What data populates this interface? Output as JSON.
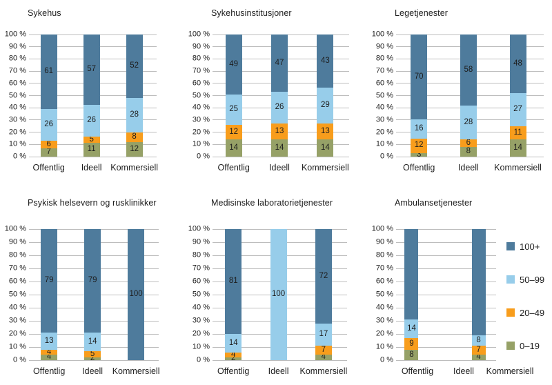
{
  "page": {
    "background": "#ffffff",
    "text_color": "#1d1d1d",
    "gridline_color": "#bdbdbd"
  },
  "legend": {
    "position": "right",
    "entries": [
      {
        "label": "100+",
        "color": "#4e7b9c"
      },
      {
        "label": "50–99",
        "color": "#97cdea"
      },
      {
        "label": "20–49",
        "color": "#f89d1c"
      },
      {
        "label": "0–19",
        "color": "#96a167"
      }
    ]
  },
  "chart_data": [
    {
      "type": "bar",
      "stacked": true,
      "title": "Sykehus",
      "categories": [
        "Offentlig",
        "Ideell",
        "Kommersiell"
      ],
      "series": [
        {
          "name": "0–19",
          "color": "#96a167",
          "values": [
            7,
            11,
            12
          ]
        },
        {
          "name": "20–49",
          "color": "#f89d1c",
          "values": [
            6,
            5,
            8
          ]
        },
        {
          "name": "50–99",
          "color": "#97cdea",
          "values": [
            26,
            26,
            28
          ]
        },
        {
          "name": "100+",
          "color": "#4e7b9c",
          "values": [
            61,
            57,
            52
          ]
        }
      ],
      "ylim": [
        0,
        100
      ],
      "grid": true,
      "yticks": [
        0,
        10,
        20,
        30,
        40,
        50,
        60,
        70,
        80,
        90,
        100
      ],
      "ytick_suffix": " %"
    },
    {
      "type": "bar",
      "stacked": true,
      "title": "Sykehusinstitusjoner",
      "categories": [
        "Offentlig",
        "Ideell",
        "Kommersiell"
      ],
      "series": [
        {
          "name": "0–19",
          "color": "#96a167",
          "values": [
            14,
            14,
            14
          ]
        },
        {
          "name": "20–49",
          "color": "#f89d1c",
          "values": [
            12,
            13,
            13
          ]
        },
        {
          "name": "50–99",
          "color": "#97cdea",
          "values": [
            25,
            26,
            29
          ]
        },
        {
          "name": "100+",
          "color": "#4e7b9c",
          "values": [
            49,
            47,
            43
          ]
        }
      ],
      "ylim": [
        0,
        100
      ],
      "grid": true,
      "yticks": [
        0,
        10,
        20,
        30,
        40,
        50,
        60,
        70,
        80,
        90,
        100
      ],
      "ytick_suffix": " %"
    },
    {
      "type": "bar",
      "stacked": true,
      "title": "Legetjenester",
      "categories": [
        "Offentlig",
        "Ideell",
        "Kommersiell"
      ],
      "series": [
        {
          "name": "0–19",
          "color": "#96a167",
          "values": [
            3,
            8,
            14
          ]
        },
        {
          "name": "20–49",
          "color": "#f89d1c",
          "values": [
            12,
            6,
            11
          ]
        },
        {
          "name": "50–99",
          "color": "#97cdea",
          "values": [
            16,
            28,
            27
          ]
        },
        {
          "name": "100+",
          "color": "#4e7b9c",
          "values": [
            70,
            58,
            48
          ]
        }
      ],
      "ylim": [
        0,
        100
      ],
      "grid": true,
      "yticks": [
        0,
        10,
        20,
        30,
        40,
        50,
        60,
        70,
        80,
        90,
        100
      ],
      "ytick_suffix": " %"
    },
    {
      "type": "bar",
      "stacked": true,
      "title": "Psykisk helsevern og rusklinikker",
      "categories": [
        "Offentlig",
        "Ideell",
        "Kommersiell"
      ],
      "series": [
        {
          "name": "0–19",
          "color": "#96a167",
          "values": [
            4,
            2,
            null
          ]
        },
        {
          "name": "20–49",
          "color": "#f89d1c",
          "values": [
            4,
            5,
            null
          ]
        },
        {
          "name": "50–99",
          "color": "#97cdea",
          "values": [
            13,
            14,
            null
          ]
        },
        {
          "name": "100+",
          "color": "#4e7b9c",
          "values": [
            79,
            79,
            100
          ]
        }
      ],
      "ylim": [
        0,
        100
      ],
      "grid": true,
      "yticks": [
        0,
        10,
        20,
        30,
        40,
        50,
        60,
        70,
        80,
        90,
        100
      ],
      "ytick_suffix": " %"
    },
    {
      "type": "bar",
      "stacked": true,
      "title": "Medisinske laboratorietjenester",
      "categories": [
        "Offentlig",
        "Ideell",
        "Kommersiell"
      ],
      "series": [
        {
          "name": "0–19",
          "color": "#96a167",
          "values": [
            2,
            null,
            4
          ]
        },
        {
          "name": "20–49",
          "color": "#f89d1c",
          "values": [
            4,
            null,
            7
          ]
        },
        {
          "name": "50–99",
          "color": "#97cdea",
          "values": [
            14,
            100,
            17
          ]
        },
        {
          "name": "100+",
          "color": "#4e7b9c",
          "values": [
            81,
            null,
            72
          ]
        }
      ],
      "ylim": [
        0,
        100
      ],
      "grid": true,
      "yticks": [
        0,
        10,
        20,
        30,
        40,
        50,
        60,
        70,
        80,
        90,
        100
      ],
      "ytick_suffix": " %"
    },
    {
      "type": "bar",
      "stacked": true,
      "title": "Ambulansetjenester",
      "categories": [
        "Offentlig",
        "Ideell",
        "Kommersiell"
      ],
      "series": [
        {
          "name": "0–19",
          "color": "#96a167",
          "values": [
            8,
            null,
            4
          ]
        },
        {
          "name": "20–49",
          "color": "#f89d1c",
          "values": [
            9,
            null,
            7
          ]
        },
        {
          "name": "50–99",
          "color": "#97cdea",
          "values": [
            14,
            null,
            8
          ]
        },
        {
          "name": "100+",
          "color": "#4e7b9c",
          "values": [
            69,
            null,
            81
          ],
          "show_value_labels": false
        }
      ],
      "ylim": [
        0,
        100
      ],
      "grid": true,
      "yticks": [
        0,
        10,
        20,
        30,
        40,
        50,
        60,
        70,
        80,
        90,
        100
      ],
      "ytick_suffix": " %"
    }
  ]
}
